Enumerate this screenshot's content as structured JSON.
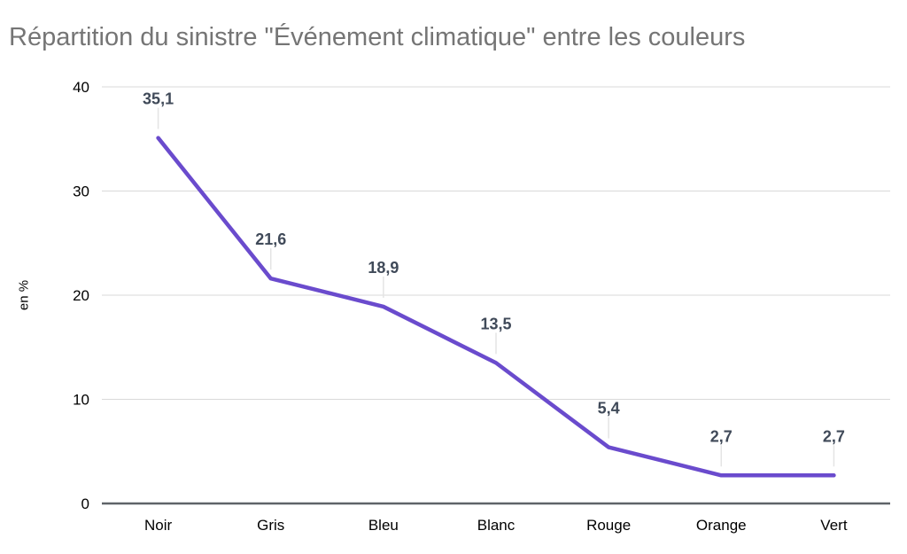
{
  "chart_data": {
    "type": "line",
    "title": "Répartition du sinistre \"Événement climatique\" entre les couleurs",
    "ylabel": "en %",
    "categories": [
      "Noir",
      "Gris",
      "Bleu",
      "Blanc",
      "Rouge",
      "Orange",
      "Vert"
    ],
    "values": [
      35.1,
      21.6,
      18.9,
      13.5,
      5.4,
      2.7,
      2.7
    ],
    "value_labels": [
      "35,1",
      "21,6",
      "18,9",
      "13,5",
      "5,4",
      "2,7",
      "2,7"
    ],
    "yticks": [
      0,
      10,
      20,
      30,
      40
    ],
    "ytick_labels": [
      "0",
      "10",
      "20",
      "30",
      "40"
    ],
    "ylim": [
      0,
      40
    ],
    "grid": true,
    "legend": "none",
    "colors": {
      "line": "#6A4BCD",
      "title": "#757575",
      "data_label": "#404A59",
      "axis_text": "#000000",
      "gridline": "#D9D9D9",
      "baseline": "#5F6368",
      "label_stem": "#E4E4E4",
      "background": "#FFFFFF"
    }
  }
}
